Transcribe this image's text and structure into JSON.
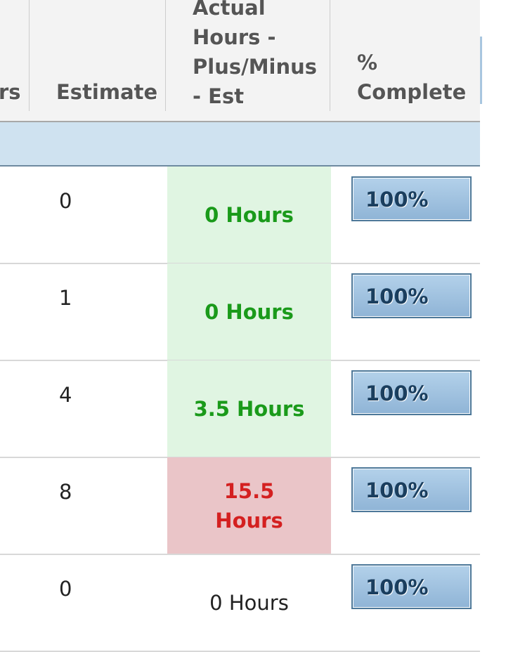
{
  "header": {
    "col_prev_fragment": "rs",
    "estimate": "Estimate",
    "actual": "Actual Hours - Plus/Minus - Est",
    "percent": "% Complete"
  },
  "colors": {
    "good_bg": "#e0f5e2",
    "good_text": "#1a9a1a",
    "bad_bg": "#eac5c8",
    "bad_text": "#d42020",
    "progress": "#9fc1e0"
  },
  "rows": [
    {
      "estimate": "0",
      "actual": "0 Hours",
      "status": "good",
      "percent": "100%",
      "progress": 100
    },
    {
      "estimate": "1",
      "actual": "0 Hours",
      "status": "good",
      "percent": "100%",
      "progress": 100
    },
    {
      "estimate": "4",
      "actual": "3.5 Hours",
      "status": "good",
      "percent": "100%",
      "progress": 100
    },
    {
      "estimate": "8",
      "actual": "15.5 Hours",
      "status": "bad",
      "percent": "100%",
      "progress": 100
    },
    {
      "estimate": "0",
      "actual": "0 Hours",
      "status": "none",
      "percent": "100%",
      "progress": 100
    }
  ]
}
